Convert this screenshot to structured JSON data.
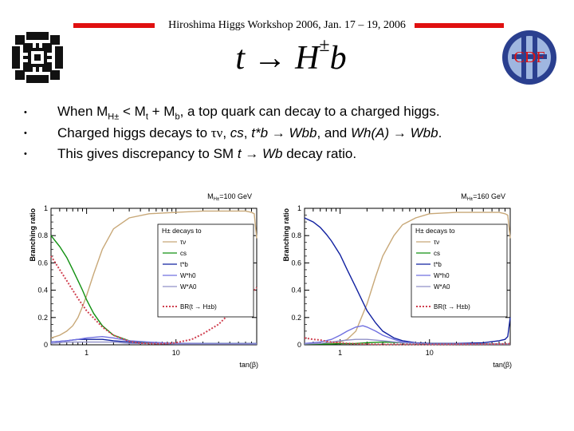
{
  "header": {
    "title": "Hiroshima Higgs Workshop 2006, Jan. 17 – 19, 2006"
  },
  "formula": {
    "t": "t",
    "arrow": "→",
    "H": "H",
    "charge": "±",
    "b": "b"
  },
  "logos": {
    "left": "fermilab-logo",
    "right": "cdf-logo",
    "right_text": "CDF"
  },
  "bullets": [
    {
      "bullet": "•",
      "pre": "When M",
      "sub1": "H±",
      "mid": " < M",
      "sub2": "t",
      "mid2": " + M",
      "sub3": "b",
      "post": ", a top quark can decay to a charged higgs."
    },
    {
      "bullet": "•",
      "pre": "Charged higgs decays to ",
      "taunu": "τν",
      "mid": ", ",
      "i1": "cs",
      "mid2": ", ",
      "i2": "t*b",
      "arrow1": " → ",
      "i3": "Wbb",
      "mid3": ", and ",
      "i4": "Wh(A)",
      "arrow2": " → ",
      "i5": "Wbb",
      "post": "."
    },
    {
      "bullet": "•",
      "pre": "This gives discrepancy to SM ",
      "i1": "t",
      "arrow": " → ",
      "i2": "Wb",
      "post": " decay ratio."
    }
  ],
  "colors": {
    "accent_red": "#e01010",
    "tau": "#c8a878",
    "cs": "#109010",
    "tb": "#1020a0",
    "Wh": "#7070e0",
    "WA": "#9090c8",
    "BR": "#d04050"
  },
  "chart_data": [
    {
      "type": "line",
      "title_main": "M",
      "title_sub": "H±",
      "title_val": "=100 GeV",
      "xlabel": "tan(β)",
      "ylabel": "Branching ratio",
      "xscale": "log",
      "xlim": [
        0.4,
        80
      ],
      "ylim": [
        0,
        1
      ],
      "xticks": [
        {
          "v": 1,
          "label": "1"
        },
        {
          "v": 10,
          "label": "10"
        }
      ],
      "yticks": [
        {
          "v": 0,
          "label": "0"
        },
        {
          "v": 0.2,
          "label": "0.2"
        },
        {
          "v": 0.4,
          "label": "0.4"
        },
        {
          "v": 0.6,
          "label": "0.6"
        },
        {
          "v": 0.8,
          "label": "0.8"
        },
        {
          "v": 1,
          "label": "1"
        }
      ],
      "legend": {
        "title": "H± decays to",
        "placement": "top-right",
        "br_label": "BR(t → H±b)"
      },
      "series": [
        {
          "name": "τν",
          "color": "#c8a878",
          "dash": false,
          "x": [
            0.4,
            0.5,
            0.6,
            0.7,
            0.8,
            0.9,
            1,
            1.2,
            1.5,
            2,
            3,
            5,
            10,
            20,
            40,
            60,
            70,
            75,
            80
          ],
          "y": [
            0.05,
            0.07,
            0.1,
            0.14,
            0.2,
            0.28,
            0.36,
            0.52,
            0.7,
            0.85,
            0.93,
            0.96,
            0.97,
            0.98,
            0.98,
            0.98,
            0.97,
            0.96,
            0.78
          ]
        },
        {
          "name": "cs",
          "color": "#109010",
          "dash": false,
          "x": [
            0.4,
            0.5,
            0.6,
            0.7,
            0.8,
            0.9,
            1,
            1.2,
            1.5,
            2,
            3,
            5,
            10,
            80
          ],
          "y": [
            0.8,
            0.72,
            0.64,
            0.55,
            0.47,
            0.4,
            0.33,
            0.23,
            0.14,
            0.07,
            0.03,
            0.015,
            0.01,
            0.01
          ]
        },
        {
          "name": "t*b",
          "color": "#1020a0",
          "dash": false,
          "x": [
            0.4,
            0.6,
            0.8,
            1,
            1.5,
            2,
            3,
            5,
            10,
            80
          ],
          "y": [
            0.02,
            0.03,
            0.04,
            0.04,
            0.04,
            0.03,
            0.02,
            0.01,
            0.01,
            0.005
          ]
        },
        {
          "name": "W*h0",
          "color": "#7070e0",
          "dash": false,
          "x": [
            0.4,
            0.6,
            0.8,
            1,
            1.5,
            2,
            3,
            5,
            10,
            80
          ],
          "y": [
            0.02,
            0.03,
            0.04,
            0.05,
            0.06,
            0.05,
            0.03,
            0.02,
            0.01,
            0.01
          ]
        },
        {
          "name": "W*A0",
          "color": "#9090c8",
          "dash": false,
          "x": [
            0.4,
            0.6,
            0.8,
            1,
            1.5,
            2,
            3,
            5,
            10,
            80
          ],
          "y": [
            0.01,
            0.02,
            0.02,
            0.02,
            0.02,
            0.02,
            0.01,
            0.01,
            0.005,
            0.005
          ]
        },
        {
          "name": "BR(t → H±b)",
          "color": "#d04050",
          "dash": true,
          "x": [
            0.4,
            0.5,
            0.6,
            0.7,
            0.8,
            1,
            1.5,
            2,
            3,
            4,
            5,
            6,
            7,
            8,
            10,
            15,
            20,
            30,
            40,
            60,
            80
          ],
          "y": [
            0.65,
            0.55,
            0.47,
            0.4,
            0.34,
            0.25,
            0.13,
            0.07,
            0.025,
            0.012,
            0.01,
            0.008,
            0.008,
            0.01,
            0.015,
            0.04,
            0.08,
            0.15,
            0.23,
            0.33,
            0.42
          ]
        }
      ]
    },
    {
      "type": "line",
      "title_main": "M",
      "title_sub": "H±",
      "title_val": "=160 GeV",
      "xlabel": "tan(β)",
      "ylabel": "Branching ratio",
      "xscale": "log",
      "xlim": [
        0.4,
        80
      ],
      "ylim": [
        0,
        1
      ],
      "xticks": [
        {
          "v": 1,
          "label": "1"
        },
        {
          "v": 10,
          "label": "10"
        }
      ],
      "yticks": [
        {
          "v": 0,
          "label": "0"
        },
        {
          "v": 0.2,
          "label": "0.2"
        },
        {
          "v": 0.4,
          "label": "0.4"
        },
        {
          "v": 0.6,
          "label": "0.6"
        },
        {
          "v": 0.8,
          "label": "0.8"
        },
        {
          "v": 1,
          "label": "1"
        }
      ],
      "legend": {
        "title": "H± decays to",
        "placement": "top-right",
        "br_label": "BR(t → H±b)"
      },
      "series": [
        {
          "name": "τν",
          "color": "#c8a878",
          "dash": false,
          "x": [
            0.4,
            0.6,
            0.8,
            1,
            1.2,
            1.5,
            2,
            2.5,
            3,
            4,
            5,
            7,
            10,
            20,
            40,
            60,
            70,
            75,
            80
          ],
          "y": [
            0.01,
            0.01,
            0.01,
            0.02,
            0.04,
            0.1,
            0.3,
            0.5,
            0.65,
            0.8,
            0.88,
            0.93,
            0.96,
            0.97,
            0.97,
            0.97,
            0.96,
            0.95,
            0.78
          ]
        },
        {
          "name": "cs",
          "color": "#109010",
          "dash": false,
          "x": [
            0.4,
            0.6,
            0.8,
            1,
            1.5,
            2,
            3,
            5,
            10,
            80
          ],
          "y": [
            0.005,
            0.005,
            0.005,
            0.008,
            0.01,
            0.015,
            0.02,
            0.015,
            0.01,
            0.005
          ]
        },
        {
          "name": "t*b",
          "color": "#1020a0",
          "dash": false,
          "x": [
            0.4,
            0.5,
            0.6,
            0.7,
            0.8,
            1,
            1.2,
            1.5,
            2,
            2.5,
            3,
            4,
            5,
            7,
            10,
            20,
            40,
            60,
            70,
            75,
            80
          ],
          "y": [
            0.93,
            0.9,
            0.86,
            0.81,
            0.76,
            0.66,
            0.55,
            0.42,
            0.25,
            0.16,
            0.1,
            0.05,
            0.03,
            0.015,
            0.01,
            0.01,
            0.015,
            0.03,
            0.04,
            0.06,
            0.2
          ]
        },
        {
          "name": "W*h0",
          "color": "#7070e0",
          "dash": false,
          "x": [
            0.4,
            0.6,
            0.8,
            1,
            1.2,
            1.5,
            1.8,
            2,
            2.5,
            3,
            4,
            5,
            10,
            80
          ],
          "y": [
            0.01,
            0.02,
            0.04,
            0.07,
            0.1,
            0.13,
            0.14,
            0.13,
            0.1,
            0.07,
            0.04,
            0.02,
            0.005,
            0.005
          ]
        },
        {
          "name": "W*A0",
          "color": "#9090c8",
          "dash": false,
          "x": [
            0.4,
            0.6,
            0.8,
            1,
            1.5,
            2,
            3,
            5,
            10,
            80
          ],
          "y": [
            0.005,
            0.01,
            0.02,
            0.03,
            0.04,
            0.04,
            0.03,
            0.015,
            0.005,
            0.005
          ]
        },
        {
          "name": "BR(t → H±b)",
          "color": "#d04050",
          "dash": true,
          "x": [
            0.4,
            0.5,
            0.6,
            0.7,
            0.8,
            1,
            1.2,
            1.5,
            2,
            2.5,
            3,
            5,
            10,
            20,
            40,
            60,
            80
          ],
          "y": [
            0.05,
            0.04,
            0.035,
            0.025,
            0.02,
            0.015,
            0.01,
            0.008,
            0.005,
            0.004,
            0.003,
            0.003,
            0.003,
            0.004,
            0.005,
            0.006,
            0.008
          ]
        }
      ]
    }
  ]
}
